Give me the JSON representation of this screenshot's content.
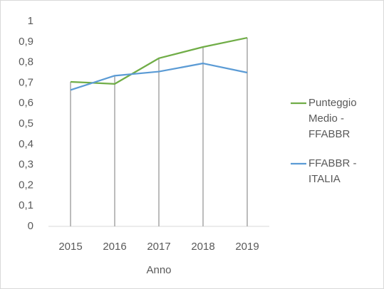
{
  "chart_data": {
    "type": "line",
    "x_label": "Anno",
    "categories": [
      "2015",
      "2016",
      "2017",
      "2018",
      "2019"
    ],
    "series": [
      {
        "name": "Punteggio Medio - FFABBR",
        "color": "#70ad47",
        "values": [
          0.705,
          0.695,
          0.82,
          0.875,
          0.92
        ]
      },
      {
        "name": "FFABBR - ITALIA",
        "color": "#5b9bd5",
        "values": [
          0.665,
          0.735,
          0.755,
          0.795,
          0.75
        ]
      }
    ],
    "ylim": [
      0,
      1
    ],
    "yticks": [
      0,
      {
        "value": 0.1,
        "label": "0,1"
      },
      {
        "value": 0.2,
        "label": "0,2"
      },
      {
        "value": 0.3,
        "label": "0,3"
      },
      {
        "value": 0.4,
        "label": "0,4"
      },
      {
        "value": 0.5,
        "label": "0,5"
      },
      {
        "value": 0.6,
        "label": "0,6"
      },
      {
        "value": 0.7,
        "label": "0,7"
      },
      {
        "value": 0.8,
        "label": "0,8"
      },
      {
        "value": 0.9,
        "label": "0,9"
      },
      1
    ],
    "drop_lines": true,
    "legend": "right"
  }
}
